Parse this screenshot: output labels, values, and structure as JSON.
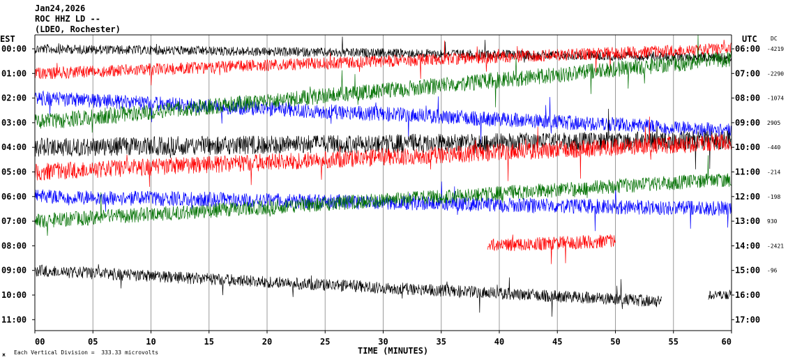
{
  "header": {
    "date": "Jan24,2026",
    "station": "ROC HHZ LD --",
    "network": "(LDEO, Rochester)"
  },
  "footer": {
    "scale_note": "Each Vertical Division =  333.33 microvolts",
    "corner_mark": "ж"
  },
  "chart_data": {
    "type": "line",
    "title": "",
    "xlabel": "TIME (MINUTES)",
    "left_axis_label": "EST",
    "right_axis_label": "UTC",
    "dc_label": "DC",
    "xlim": [
      0,
      60
    ],
    "x_tick_labels": [
      "00",
      "05",
      "10",
      "15",
      "20",
      "25",
      "30",
      "35",
      "40",
      "45",
      "50",
      "55",
      "60"
    ],
    "grid": "vertical",
    "trace_colors": [
      "#000000",
      "#ff0000",
      "#0000ff",
      "#007000"
    ],
    "rows": [
      {
        "est": "00:00",
        "utc": "06:00",
        "dc": "-4219",
        "color": "#000000",
        "drift": 0.35,
        "amp": 0.35,
        "start": 0,
        "end": 60
      },
      {
        "est": "01:00",
        "utc": "07:00",
        "dc": "-2290",
        "color": "#ff0000",
        "drift": -1.0,
        "amp": 0.45,
        "start": 0,
        "end": 60
      },
      {
        "est": "02:00",
        "utc": "08:00",
        "dc": "-1074",
        "color": "#0000ff",
        "drift": 1.3,
        "amp": 0.55,
        "start": 0,
        "end": 60
      },
      {
        "est": "03:00",
        "utc": "09:00",
        "dc": "2905",
        "color": "#007000",
        "drift": -2.6,
        "amp": 0.6,
        "start": 0,
        "end": 60
      },
      {
        "est": "04:00",
        "utc": "10:00",
        "dc": "-440",
        "color": "#000000",
        "drift": -0.3,
        "amp": 0.7,
        "start": 0,
        "end": 60
      },
      {
        "est": "05:00",
        "utc": "11:00",
        "dc": "-214",
        "color": "#ff0000",
        "drift": -1.2,
        "amp": 0.65,
        "start": 0,
        "end": 60
      },
      {
        "est": "06:00",
        "utc": "12:00",
        "dc": "-198",
        "color": "#0000ff",
        "drift": 0.5,
        "amp": 0.55,
        "start": 0,
        "end": 60
      },
      {
        "est": "07:00",
        "utc": "13:00",
        "dc": "930",
        "color": "#007000",
        "drift": -1.7,
        "amp": 0.55,
        "start": 0,
        "end": 60
      },
      {
        "est": "08:00",
        "utc": "14:00",
        "dc": "-2421",
        "color": "#ff0000",
        "drift": -1.1,
        "amp": 0.5,
        "start": 39,
        "end": 50
      },
      {
        "est": "09:00",
        "utc": "15:00",
        "dc": "-96",
        "color": "#000000",
        "drift": 1.4,
        "amp": 0.45,
        "start": 0,
        "end": 54
      },
      {
        "est": "10:00",
        "utc": "16:00",
        "dc": "",
        "color": "#000000",
        "drift": 0,
        "amp": 0.35,
        "start": 58,
        "end": 60
      },
      {
        "est": "11:00",
        "utc": "17:00",
        "dc": "",
        "color": "#000000",
        "drift": 0,
        "amp": 0,
        "start": 60,
        "end": 60
      }
    ]
  }
}
